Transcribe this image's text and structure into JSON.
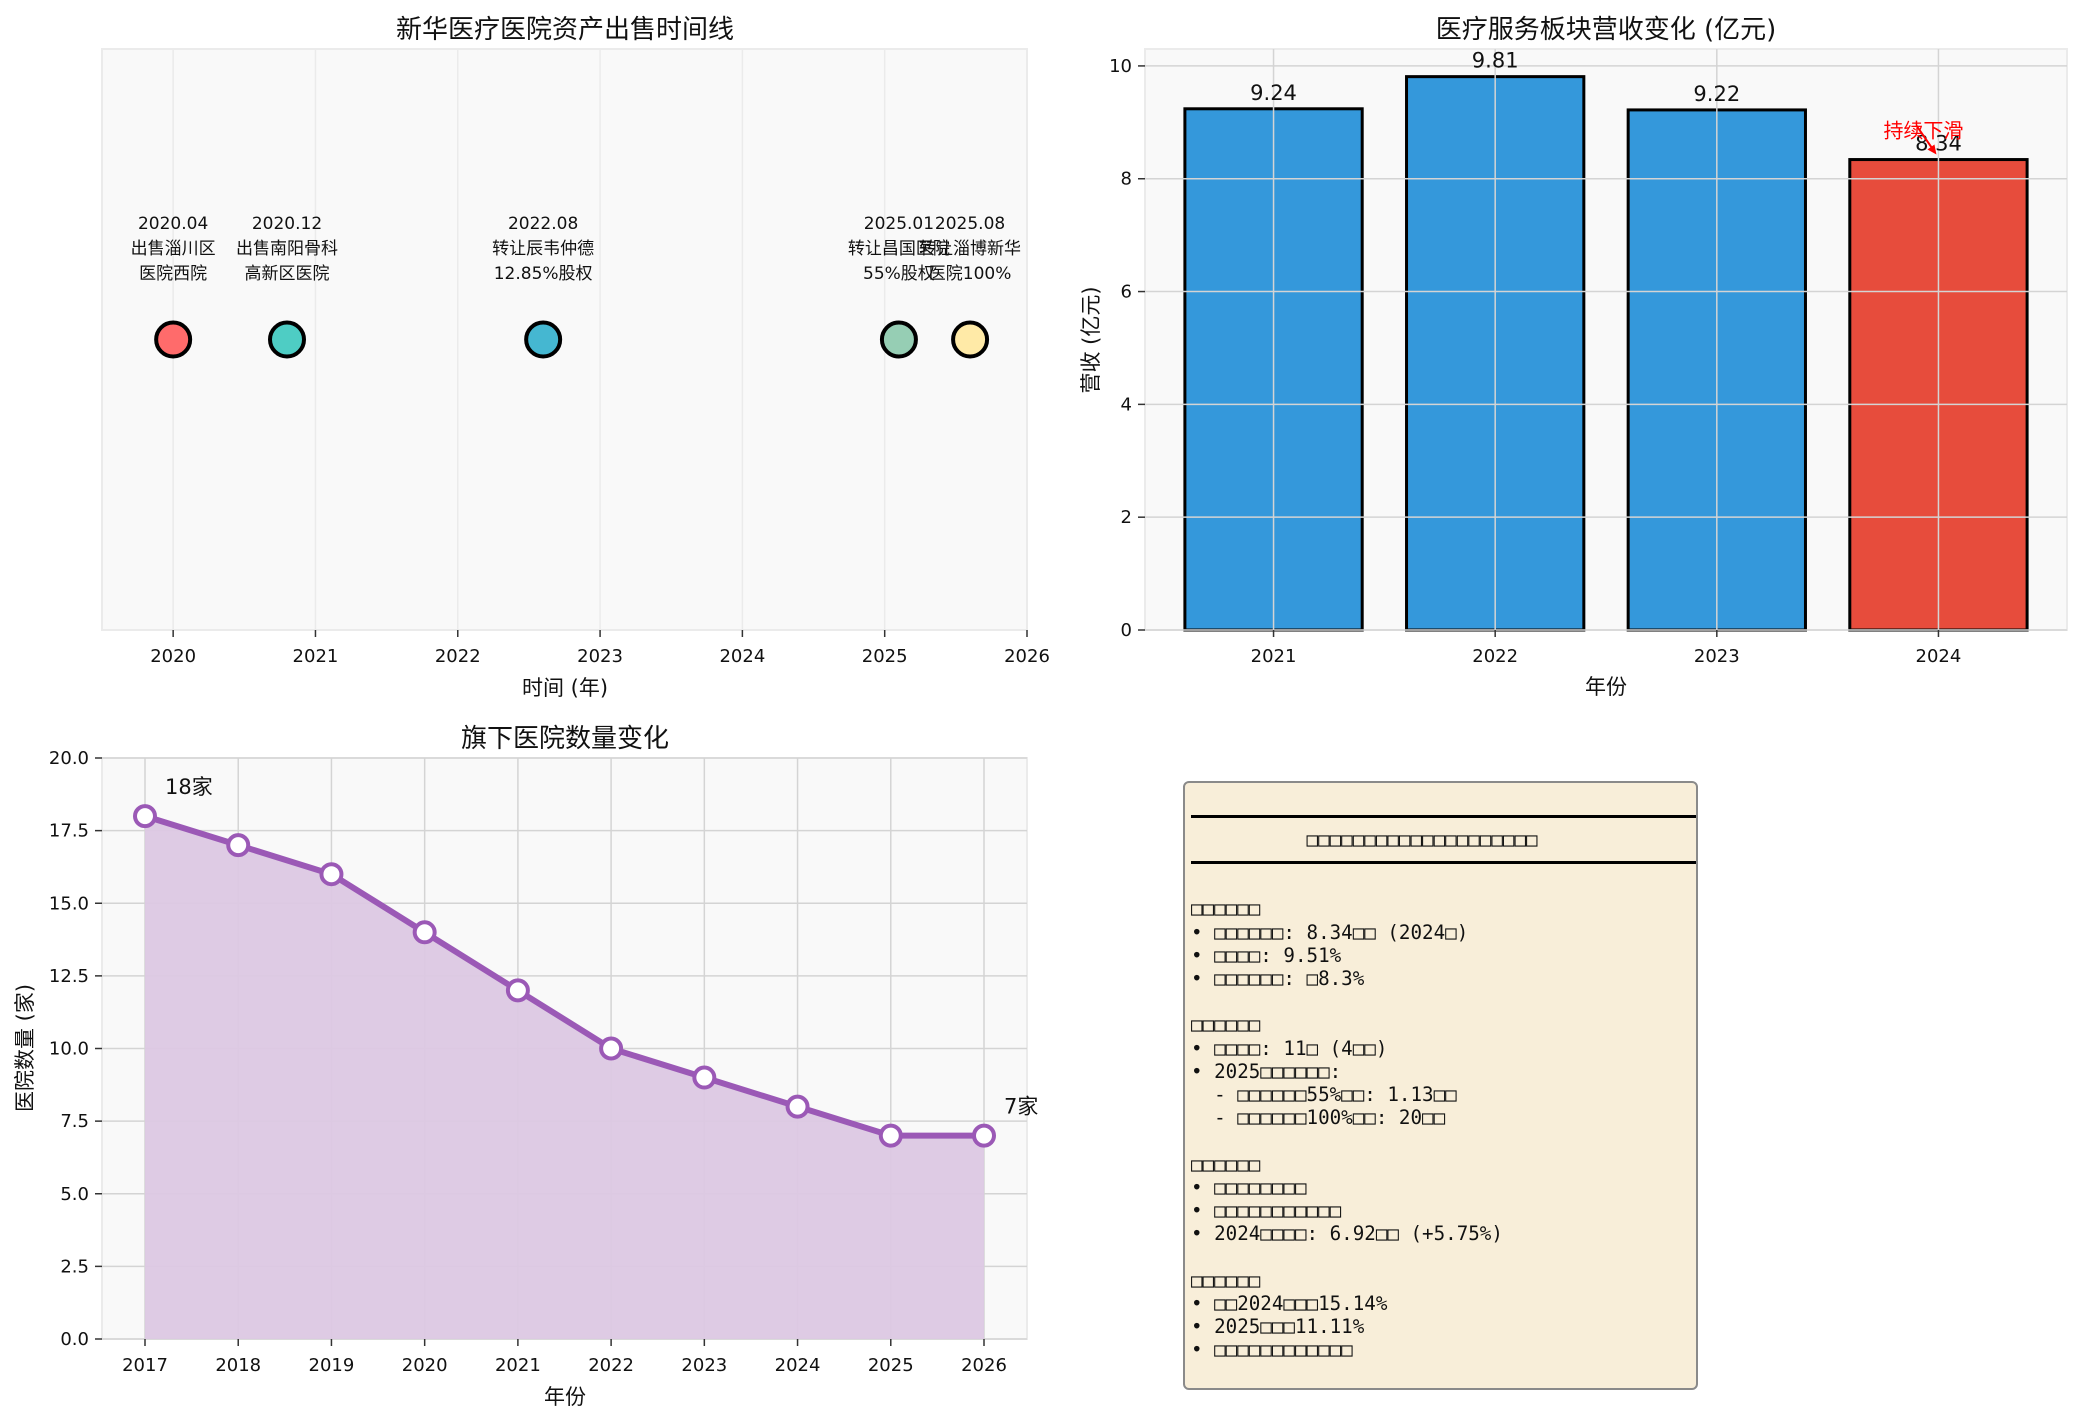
{
  "colors": {
    "plot_bg": "#f9f9f9",
    "grid": "#d4d4d4",
    "grid_light": "#ebebeb",
    "bar_blue": "#3498db",
    "bar_red": "#e74c3c",
    "line_purple": "#9b59b6",
    "fill_purple": "#dcc8e3",
    "annotation_red": "#ff0000",
    "box_bg": "#f8eed9"
  },
  "chart_data": [
    {
      "type": "scatter",
      "title": "新华医疗医院资产出售时间线",
      "xlabel": "时间 (年)",
      "ylabel": "",
      "xlim": [
        2019.5,
        2026
      ],
      "ylim": [
        -1,
        1
      ],
      "xticks": [
        2020,
        2021,
        2022,
        2023,
        2024,
        2025,
        2026
      ],
      "grid": "x-only",
      "events": [
        {
          "x": 2020.0,
          "date": "2020.04",
          "line1": "出售淄川区",
          "line2": "医院西院",
          "color": "#ff6b6b"
        },
        {
          "x": 2020.8,
          "date": "2020.12",
          "line1": "出售南阳骨科",
          "line2": "高新区医院",
          "color": "#4ecdc4"
        },
        {
          "x": 2022.6,
          "date": "2022.08",
          "line1": "转让辰韦仲德",
          "line2": "12.85%股权",
          "color": "#45b7d1"
        },
        {
          "x": 2025.1,
          "date": "2025.01",
          "line1": "转让昌国医院",
          "line2": "55%股权",
          "color": "#96ceb4"
        },
        {
          "x": 2025.6,
          "date": "2025.08",
          "line1": "转让淄博新华",
          "line2": "医院100%",
          "color": "#ffeaa7"
        }
      ]
    },
    {
      "type": "bar",
      "title": "医疗服务板块营收变化 (亿元)",
      "xlabel": "年份",
      "ylabel": "营收 (亿元)",
      "categories": [
        "2021",
        "2022",
        "2023",
        "2024"
      ],
      "values": [
        9.24,
        9.81,
        9.22,
        8.34
      ],
      "value_labels": [
        "9.24",
        "9.81",
        "9.22",
        "8.34"
      ],
      "ylim": [
        0,
        10.3
      ],
      "yticks": [
        0,
        2,
        4,
        6,
        8,
        10
      ],
      "grid": true,
      "highlight_index": 3,
      "annotation": {
        "text": "持续下滑",
        "target_index": 3
      }
    },
    {
      "type": "area",
      "title": "旗下医院数量变化",
      "xlabel": "年份",
      "ylabel": "医院数量 (家)",
      "x": [
        2017,
        2018,
        2019,
        2020,
        2021,
        2022,
        2023,
        2024,
        2025,
        2026
      ],
      "values": [
        18,
        17,
        16,
        14,
        12,
        10,
        9,
        8,
        7,
        7
      ],
      "ylim": [
        0,
        20
      ],
      "yticks": [
        "0.0",
        "2.5",
        "5.0",
        "7.5",
        "10.0",
        "12.5",
        "15.0",
        "17.5",
        "20.0"
      ],
      "grid": true,
      "annotations": [
        {
          "text": "18家",
          "x": 2017,
          "y": 18
        },
        {
          "text": "7家",
          "x": 2026,
          "y": 7
        }
      ]
    }
  ],
  "summary_box": {
    "title": "□□□□□□□□□□□□□□□□□□□□",
    "sections": [
      {
        "header": "□□□□□□",
        "lines": [
          "• □□□□□□: 8.34□□ (2024□)",
          "• □□□□: 9.51%",
          "• □□□□□□: □8.3%"
        ]
      },
      {
        "header": "□□□□□□",
        "lines": [
          "• □□□□: 11□ (4□□)",
          "• 2025□□□□□□:",
          "  - □□□□□□55%□□: 1.13□□",
          "  - □□□□□□100%□□: 20□□"
        ]
      },
      {
        "header": "□□□□□□",
        "lines": [
          "• □□□□□□□□",
          "• □□□□□□□□□□□",
          "• 2024□□□□: 6.92□□ (+5.75%)"
        ]
      },
      {
        "header": "□□□□□□",
        "lines": [
          "• □□2024□□□15.14%",
          "• 2025□□□11.11%",
          "• □□□□□□□□□□□□"
        ]
      }
    ]
  }
}
